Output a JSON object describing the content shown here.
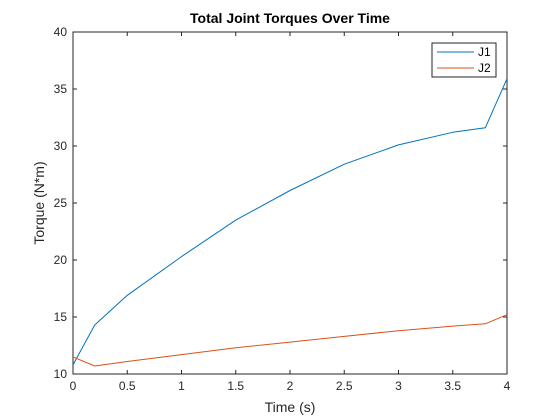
{
  "chart_data": {
    "type": "line",
    "title": "Total Joint Torques Over Time",
    "xlabel": "Time (s)",
    "ylabel": "Torque (N*m)",
    "xlim": [
      0,
      4
    ],
    "ylim": [
      10,
      40
    ],
    "xticks": [
      0,
      0.5,
      1,
      1.5,
      2,
      2.5,
      3,
      3.5,
      4
    ],
    "xtick_labels": [
      "0",
      "0.5",
      "1",
      "1.5",
      "2",
      "2.5",
      "3",
      "3.5",
      "4"
    ],
    "yticks": [
      10,
      15,
      20,
      25,
      30,
      35,
      40
    ],
    "ytick_labels": [
      "10",
      "15",
      "20",
      "25",
      "30",
      "35",
      "40"
    ],
    "grid": false,
    "legend_position": "top-right",
    "series": [
      {
        "name": "J1",
        "color": "#0072bd",
        "x": [
          0,
          0.2,
          0.5,
          1.0,
          1.5,
          2.0,
          2.5,
          3.0,
          3.5,
          3.8,
          4.0
        ],
        "y": [
          10.8,
          14.3,
          16.9,
          20.3,
          23.5,
          26.1,
          28.4,
          30.1,
          31.2,
          31.6,
          35.9
        ]
      },
      {
        "name": "J2",
        "color": "#d95319",
        "x": [
          0,
          0.2,
          0.5,
          1.0,
          1.5,
          2.0,
          2.5,
          3.0,
          3.5,
          3.8,
          4.0
        ],
        "y": [
          11.5,
          10.7,
          11.1,
          11.7,
          12.3,
          12.8,
          13.3,
          13.8,
          14.2,
          14.4,
          15.2
        ]
      }
    ]
  }
}
